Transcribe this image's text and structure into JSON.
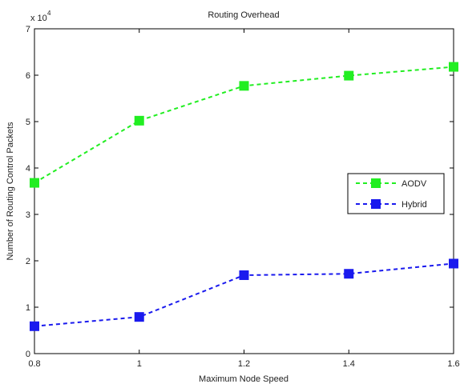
{
  "chart_data": {
    "type": "line",
    "title": "Routing Overhead",
    "xlabel": "Maximum Node Speed",
    "ylabel": "Number of Routing Control Packets",
    "y_exponent_label": "x 10",
    "y_exponent_power": "4",
    "x": [
      0.8,
      1.0,
      1.2,
      1.4,
      1.6
    ],
    "x_tick_labels": [
      "0.8",
      "1",
      "1.2",
      "1.4",
      "1.6"
    ],
    "xlim": [
      0.8,
      1.6
    ],
    "y_tick_values": [
      0,
      1,
      2,
      3,
      4,
      5,
      6,
      7
    ],
    "y_tick_labels": [
      "0",
      "1",
      "2",
      "3",
      "4",
      "5",
      "6",
      "7"
    ],
    "ylim": [
      0,
      7
    ],
    "grid": false,
    "legend_position": "right",
    "series": [
      {
        "name": "AODV",
        "color": "#22ee22",
        "marker": "square",
        "line_style": "dashed",
        "values": [
          3.68,
          5.02,
          5.77,
          5.99,
          6.18
        ]
      },
      {
        "name": "Hybrid",
        "color": "#1a1aee",
        "marker": "square",
        "line_style": "dashed",
        "values": [
          0.59,
          0.79,
          1.69,
          1.72,
          1.94
        ]
      }
    ]
  }
}
